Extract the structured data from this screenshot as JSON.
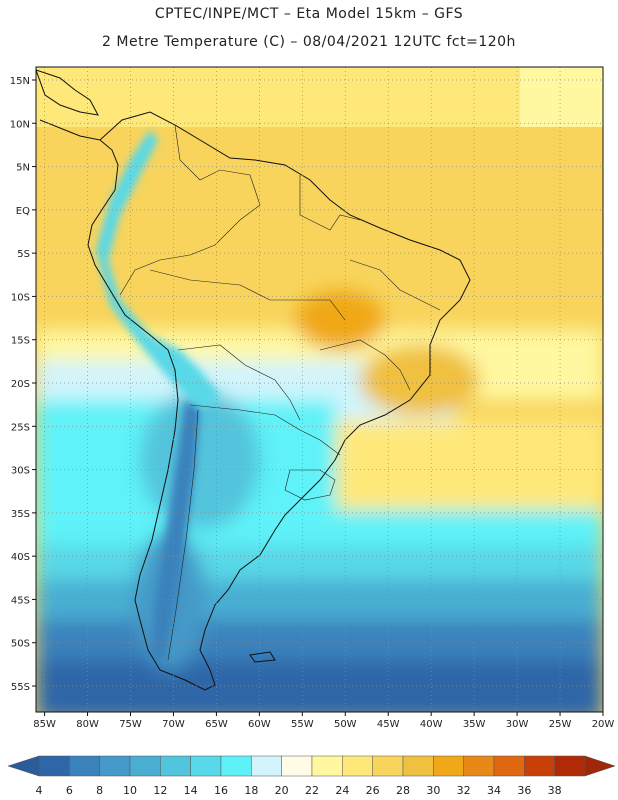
{
  "header": {
    "line1": "CPTEC/INPE/MCT –  Eta Model 15km – GFS",
    "line2": "2 Metre Temperature (C) – 08/04/2021 12UTC fct=120h"
  },
  "map": {
    "lat_labels": [
      "15N",
      "10N",
      "5N",
      "EQ",
      "5S",
      "10S",
      "15S",
      "20S",
      "25S",
      "30S",
      "35S",
      "40S",
      "45S",
      "50S",
      "55S"
    ],
    "lon_labels": [
      "85W",
      "80W",
      "75W",
      "70W",
      "65W",
      "60W",
      "55W",
      "50W",
      "45W",
      "40W",
      "35W",
      "30W",
      "25W",
      "20W"
    ],
    "lat_values": [
      15,
      10,
      5,
      0,
      -5,
      -10,
      -15,
      -20,
      -25,
      -30,
      -35,
      -40,
      -45,
      -50,
      -55
    ],
    "lon_values": [
      -85,
      -80,
      -75,
      -70,
      -65,
      -60,
      -55,
      -50,
      -45,
      -40,
      -35,
      -30,
      -25,
      -20
    ],
    "extent": {
      "lon_min": -86,
      "lon_max": -20,
      "lat_min": -58,
      "lat_max": 16.5
    }
  },
  "colorbar": {
    "labels": [
      "4",
      "6",
      "8",
      "10",
      "12",
      "14",
      "16",
      "18",
      "20",
      "22",
      "24",
      "26",
      "28",
      "30",
      "32",
      "34",
      "36",
      "38"
    ],
    "colors": [
      "#2e66a8",
      "#3a82bc",
      "#4499c8",
      "#4aaed2",
      "#52c4dc",
      "#58d8e8",
      "#5ef2f8",
      "#d2f4fc",
      "#fffbe6",
      "#fff8a0",
      "#ffe87a",
      "#f8d45c",
      "#f0c040",
      "#f0a818",
      "#e88818",
      "#e06810",
      "#c84008",
      "#b02a08"
    ],
    "under_color": "#2a5c9c",
    "over_color": "#a02808"
  }
}
